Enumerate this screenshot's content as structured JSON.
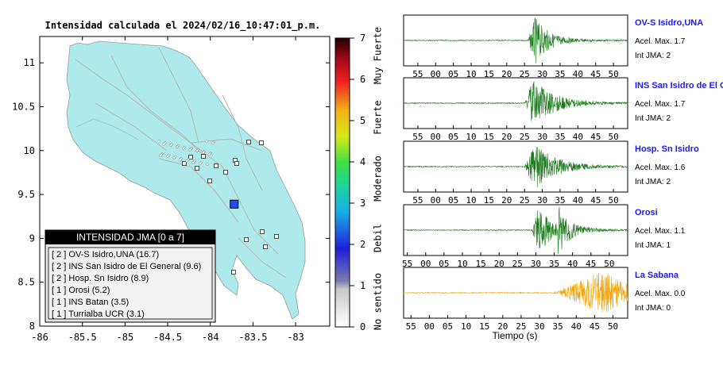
{
  "title": "Intensidad calculada el 2024/02/16_10:47:01_p.m.",
  "map": {
    "x_ticks": [
      "-86",
      "-85.5",
      "-85",
      "-84.5",
      "-84",
      "-83.5",
      "-83"
    ],
    "x_values": [
      -86,
      -85.5,
      -85,
      -84.5,
      -84,
      -83.5,
      -83
    ],
    "y_ticks": [
      "8",
      "8.5",
      "9",
      "9.5",
      "10",
      "10.5",
      "11"
    ],
    "y_values": [
      8,
      8.5,
      9,
      9.5,
      10,
      10.5,
      11
    ],
    "xlim": [
      -86,
      -82.6
    ],
    "ylim": [
      8,
      11.3
    ],
    "land_color": "#aeeaec",
    "marker_color": "#1f4fff",
    "event": {
      "lon": -83.72,
      "lat": 9.39
    }
  },
  "colorbar": {
    "ticks": [
      "0",
      "1",
      "2",
      "3",
      "4",
      "5",
      "6",
      "7"
    ],
    "values": [
      0,
      1,
      2,
      3,
      4,
      5,
      6,
      7
    ],
    "labels": [
      "No sentido",
      "Debil",
      "Moderado",
      "Fuerte",
      "Muy Fuerte"
    ]
  },
  "legend": {
    "title": "INTENSIDAD JMA [0 a 7]",
    "items": [
      "[ 2 ]  OV-S Isidro,UNA (16.7)",
      "[ 2 ]  INS San Isidro de El General (9.6)",
      "[ 2 ]  Hosp. Sn Isidro (8.9)",
      "[ 1 ]  Orosi (5.2)",
      "[ 1 ]  INS Batan (3.5)",
      "[ 1 ]  Turrialba UCR (3.1)"
    ]
  },
  "chart_data": {
    "type": "line",
    "xlabel": "Tiempo (s)",
    "x_tick_labels": [
      "55",
      "00",
      "05",
      "10",
      "15",
      "20",
      "25",
      "30",
      "35",
      "40",
      "45",
      "50"
    ],
    "x_tick_values": [
      55,
      60,
      65,
      70,
      75,
      80,
      85,
      90,
      95,
      100,
      105,
      110
    ],
    "traces": [
      {
        "name": "OV-S Isidro,UNA",
        "acel": "Acel. Max. 1.7",
        "int": "Int JMA: 2",
        "color": "#1a7a1a",
        "onset": 86,
        "peak": 88,
        "amp": 1.0,
        "decay": 4,
        "xlim": [
          51,
          114
        ]
      },
      {
        "name": "INS San Isidro de El Ge",
        "acel": "Acel. Max. 1.7",
        "int": "Int JMA: 2",
        "color": "#1a7a1a",
        "onset": 85,
        "peak": 87.5,
        "amp": 1.0,
        "decay": 6,
        "xlim": [
          51,
          114
        ]
      },
      {
        "name": "Hosp. Sn Isidro",
        "acel": "Acel. Max. 1.6",
        "int": "Int JMA: 2",
        "color": "#1a7a1a",
        "onset": 85,
        "peak": 88,
        "amp": 1.0,
        "decay": 6,
        "xlim": [
          51,
          114
        ]
      },
      {
        "name": "Orosi",
        "acel": "Acel. Max. 1.1",
        "int": "Int JMA: 1",
        "color": "#1a7a1a",
        "onset": 89,
        "peak": 90.5,
        "amp": 0.95,
        "decay": 5,
        "second": 96,
        "xlim": [
          54,
          115
        ]
      },
      {
        "name": "La Sabana",
        "acel": "Acel. Max. 0.0",
        "int": "Int JMA: 0",
        "color": "#f5a300",
        "onset": 94,
        "peak": 107,
        "amp": 0.9,
        "decay": 8,
        "xlim": [
          53,
          114
        ]
      }
    ]
  }
}
